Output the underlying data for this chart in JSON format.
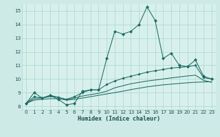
{
  "xlabel": "Humidex (Indice chaleur)",
  "x_values": [
    0,
    1,
    2,
    3,
    4,
    5,
    6,
    7,
    8,
    9,
    10,
    11,
    12,
    13,
    14,
    15,
    16,
    17,
    18,
    19,
    20,
    21,
    22,
    23
  ],
  "line1": [
    8.2,
    9.0,
    8.6,
    8.8,
    8.5,
    8.1,
    8.2,
    9.1,
    9.2,
    9.2,
    11.5,
    13.5,
    13.3,
    13.5,
    14.0,
    15.3,
    14.3,
    11.5,
    11.9,
    11.0,
    10.9,
    11.4,
    10.2,
    10.0
  ],
  "line2": [
    8.2,
    8.7,
    8.6,
    8.8,
    8.65,
    8.5,
    8.7,
    9.0,
    9.2,
    9.2,
    9.6,
    9.85,
    10.05,
    10.2,
    10.35,
    10.5,
    10.6,
    10.7,
    10.8,
    10.85,
    10.9,
    11.0,
    10.1,
    10.0
  ],
  "line3": [
    8.2,
    8.55,
    8.6,
    8.7,
    8.65,
    8.5,
    8.6,
    8.75,
    8.85,
    8.95,
    9.1,
    9.35,
    9.5,
    9.65,
    9.75,
    9.85,
    9.92,
    10.0,
    10.08,
    10.15,
    10.22,
    10.28,
    9.9,
    9.75
  ],
  "line4": [
    8.2,
    8.45,
    8.5,
    8.55,
    8.55,
    8.45,
    8.5,
    8.6,
    8.7,
    8.8,
    8.9,
    9.0,
    9.1,
    9.22,
    9.32,
    9.42,
    9.5,
    9.57,
    9.62,
    9.67,
    9.72,
    9.76,
    9.78,
    9.8
  ],
  "bg_color": "#ceeae6",
  "plot_bg_color": "#d8f0ec",
  "grid_color": "#aad4ce",
  "line_color": "#1a6b60",
  "marker_color": "#1a6b60",
  "axis_label_color": "#1a5050",
  "tick_color": "#1a5050",
  "ylim": [
    7.75,
    15.5
  ],
  "yticks": [
    8,
    9,
    10,
    11,
    12,
    13,
    14,
    15
  ],
  "xticks": [
    0,
    1,
    2,
    3,
    4,
    5,
    6,
    7,
    8,
    9,
    10,
    11,
    12,
    13,
    14,
    15,
    16,
    17,
    18,
    19,
    20,
    21,
    22,
    23
  ],
  "xlabel_fontsize": 6.0,
  "tick_fontsize": 5.2
}
